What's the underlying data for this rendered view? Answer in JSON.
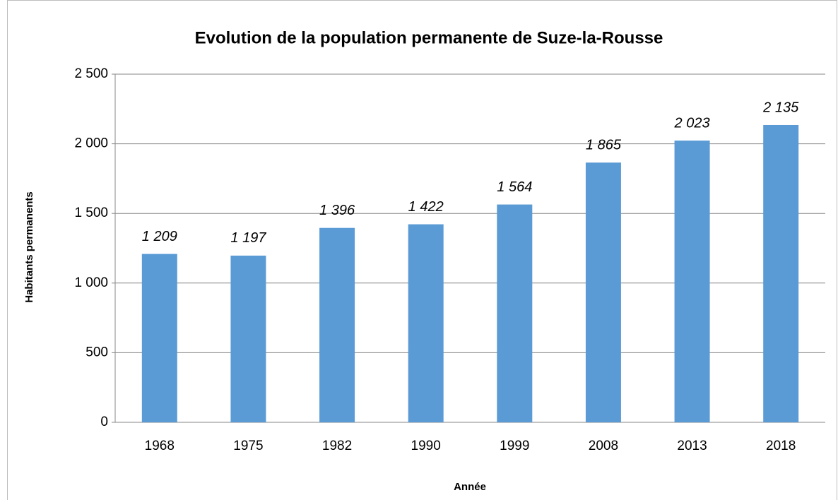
{
  "chart_data": {
    "type": "bar",
    "title": "Evolution de la population permanente de Suze-la-Rousse",
    "x_label": "Année",
    "y_label": "Habitants permanents",
    "categories": [
      "1968",
      "1975",
      "1982",
      "1990",
      "1999",
      "2008",
      "2013",
      "2018"
    ],
    "values": [
      1209,
      1197,
      1396,
      1422,
      1564,
      1865,
      2023,
      2135
    ],
    "value_labels": [
      "1 209",
      "1 197",
      "1 396",
      "1 422",
      "1 564",
      "1 865",
      "2 023",
      "2 135"
    ],
    "color": "#5b9bd5",
    "ylim": [
      0,
      2500
    ],
    "yticks": [
      0,
      500,
      {
        "value": 1000,
        "label": "1 000"
      },
      {
        "value": 1500,
        "label": "1 500"
      },
      {
        "value": 2000,
        "label": "2 000"
      },
      {
        "value": 2500,
        "label": "2 500"
      }
    ],
    "grid": true
  }
}
